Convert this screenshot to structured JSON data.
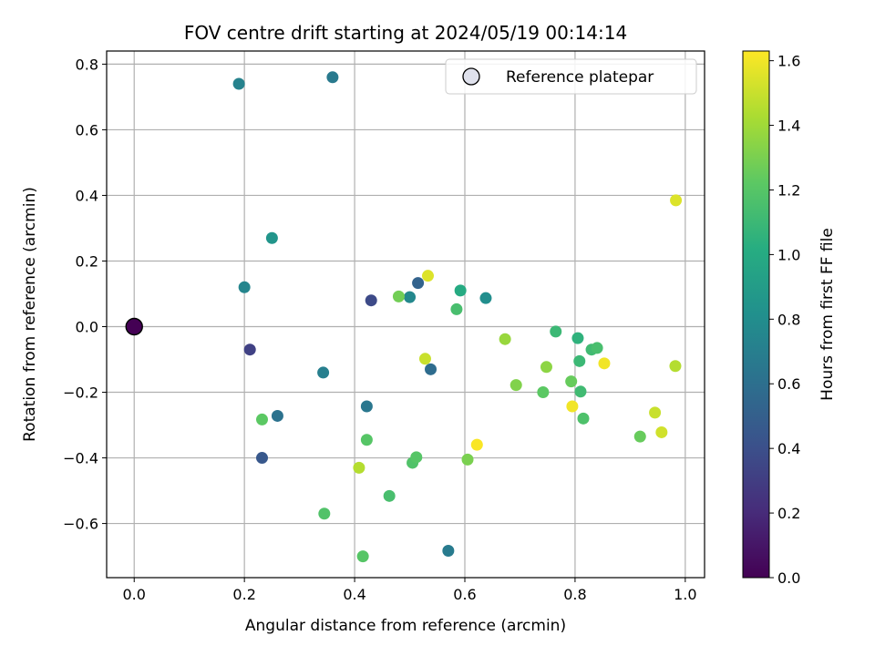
{
  "chart_data": {
    "type": "scatter",
    "title": "FOV centre drift starting at 2024/05/19 00:14:14",
    "xlabel": "Angular distance from reference (arcmin)",
    "ylabel": "Rotation from reference (arcmin)",
    "xlim": [
      -0.05,
      1.035
    ],
    "ylim": [
      -0.765,
      0.84
    ],
    "xticks": [
      0.0,
      0.2,
      0.4,
      0.6,
      0.8,
      1.0
    ],
    "xtick_labels": [
      "0.0",
      "0.2",
      "0.4",
      "0.6",
      "0.8",
      "1.0"
    ],
    "yticks": [
      -0.6,
      -0.4,
      -0.2,
      0.0,
      0.2,
      0.4,
      0.6,
      0.8
    ],
    "ytick_labels": [
      "−0.6",
      "−0.4",
      "−0.2",
      "0.0",
      "0.2",
      "0.4",
      "0.6",
      "0.8"
    ],
    "grid": true,
    "legend": {
      "position": "top-right",
      "entries": [
        "Reference platepar"
      ]
    },
    "colorbar": {
      "label": "Hours from first FF file",
      "range": [
        0.0,
        1.63
      ],
      "ticks": [
        0.0,
        0.2,
        0.4,
        0.6,
        0.8,
        1.0,
        1.2,
        1.4,
        1.6
      ],
      "tick_labels": [
        "0.0",
        "0.2",
        "0.4",
        "0.6",
        "0.8",
        "1.0",
        "1.2",
        "1.4",
        "1.6"
      ],
      "colormap": "viridis"
    },
    "reference_point": {
      "x": 0.0,
      "y": 0.0,
      "hours": 0.0
    },
    "points": [
      {
        "x": 0.21,
        "y": -0.07,
        "hours": 0.32
      },
      {
        "x": 0.43,
        "y": 0.08,
        "hours": 0.37
      },
      {
        "x": 0.232,
        "y": -0.4,
        "hours": 0.45
      },
      {
        "x": 0.515,
        "y": 0.133,
        "hours": 0.52
      },
      {
        "x": 0.538,
        "y": -0.13,
        "hours": 0.58
      },
      {
        "x": 0.26,
        "y": -0.272,
        "hours": 0.62
      },
      {
        "x": 0.422,
        "y": -0.243,
        "hours": 0.65
      },
      {
        "x": 0.36,
        "y": 0.76,
        "hours": 0.67
      },
      {
        "x": 0.57,
        "y": -0.683,
        "hours": 0.68
      },
      {
        "x": 0.343,
        "y": -0.14,
        "hours": 0.7
      },
      {
        "x": 0.19,
        "y": 0.74,
        "hours": 0.72
      },
      {
        "x": 0.2,
        "y": 0.12,
        "hours": 0.74
      },
      {
        "x": 0.5,
        "y": 0.09,
        "hours": 0.76
      },
      {
        "x": 0.638,
        "y": 0.087,
        "hours": 0.8
      },
      {
        "x": 0.25,
        "y": 0.27,
        "hours": 0.85
      },
      {
        "x": 0.592,
        "y": 0.11,
        "hours": 1.0
      },
      {
        "x": 0.805,
        "y": -0.035,
        "hours": 1.05
      },
      {
        "x": 0.765,
        "y": -0.015,
        "hours": 1.1
      },
      {
        "x": 0.808,
        "y": -0.105,
        "hours": 1.1
      },
      {
        "x": 0.81,
        "y": -0.198,
        "hours": 1.12
      },
      {
        "x": 0.83,
        "y": -0.07,
        "hours": 1.12
      },
      {
        "x": 0.84,
        "y": -0.065,
        "hours": 1.15
      },
      {
        "x": 0.585,
        "y": 0.053,
        "hours": 1.15
      },
      {
        "x": 0.463,
        "y": -0.516,
        "hours": 1.15
      },
      {
        "x": 0.815,
        "y": -0.28,
        "hours": 1.17
      },
      {
        "x": 0.505,
        "y": -0.415,
        "hours": 1.18
      },
      {
        "x": 0.345,
        "y": -0.57,
        "hours": 1.18
      },
      {
        "x": 0.422,
        "y": -0.345,
        "hours": 1.2
      },
      {
        "x": 0.512,
        "y": -0.398,
        "hours": 1.2
      },
      {
        "x": 0.415,
        "y": -0.7,
        "hours": 1.2
      },
      {
        "x": 0.232,
        "y": -0.283,
        "hours": 1.22
      },
      {
        "x": 0.742,
        "y": -0.2,
        "hours": 1.22
      },
      {
        "x": 0.793,
        "y": -0.167,
        "hours": 1.25
      },
      {
        "x": 0.918,
        "y": -0.335,
        "hours": 1.25
      },
      {
        "x": 0.48,
        "y": 0.092,
        "hours": 1.28
      },
      {
        "x": 0.605,
        "y": -0.405,
        "hours": 1.3
      },
      {
        "x": 0.693,
        "y": -0.178,
        "hours": 1.32
      },
      {
        "x": 0.748,
        "y": -0.123,
        "hours": 1.35
      },
      {
        "x": 0.673,
        "y": -0.038,
        "hours": 1.38
      },
      {
        "x": 0.408,
        "y": -0.43,
        "hours": 1.45
      },
      {
        "x": 0.982,
        "y": -0.12,
        "hours": 1.45
      },
      {
        "x": 0.528,
        "y": -0.098,
        "hours": 1.5
      },
      {
        "x": 0.945,
        "y": -0.262,
        "hours": 1.5
      },
      {
        "x": 0.957,
        "y": -0.322,
        "hours": 1.52
      },
      {
        "x": 0.533,
        "y": 0.155,
        "hours": 1.55
      },
      {
        "x": 0.983,
        "y": 0.385,
        "hours": 1.55
      },
      {
        "x": 0.853,
        "y": -0.112,
        "hours": 1.6
      },
      {
        "x": 0.795,
        "y": -0.243,
        "hours": 1.6
      },
      {
        "x": 0.622,
        "y": -0.36,
        "hours": 1.62
      }
    ]
  }
}
